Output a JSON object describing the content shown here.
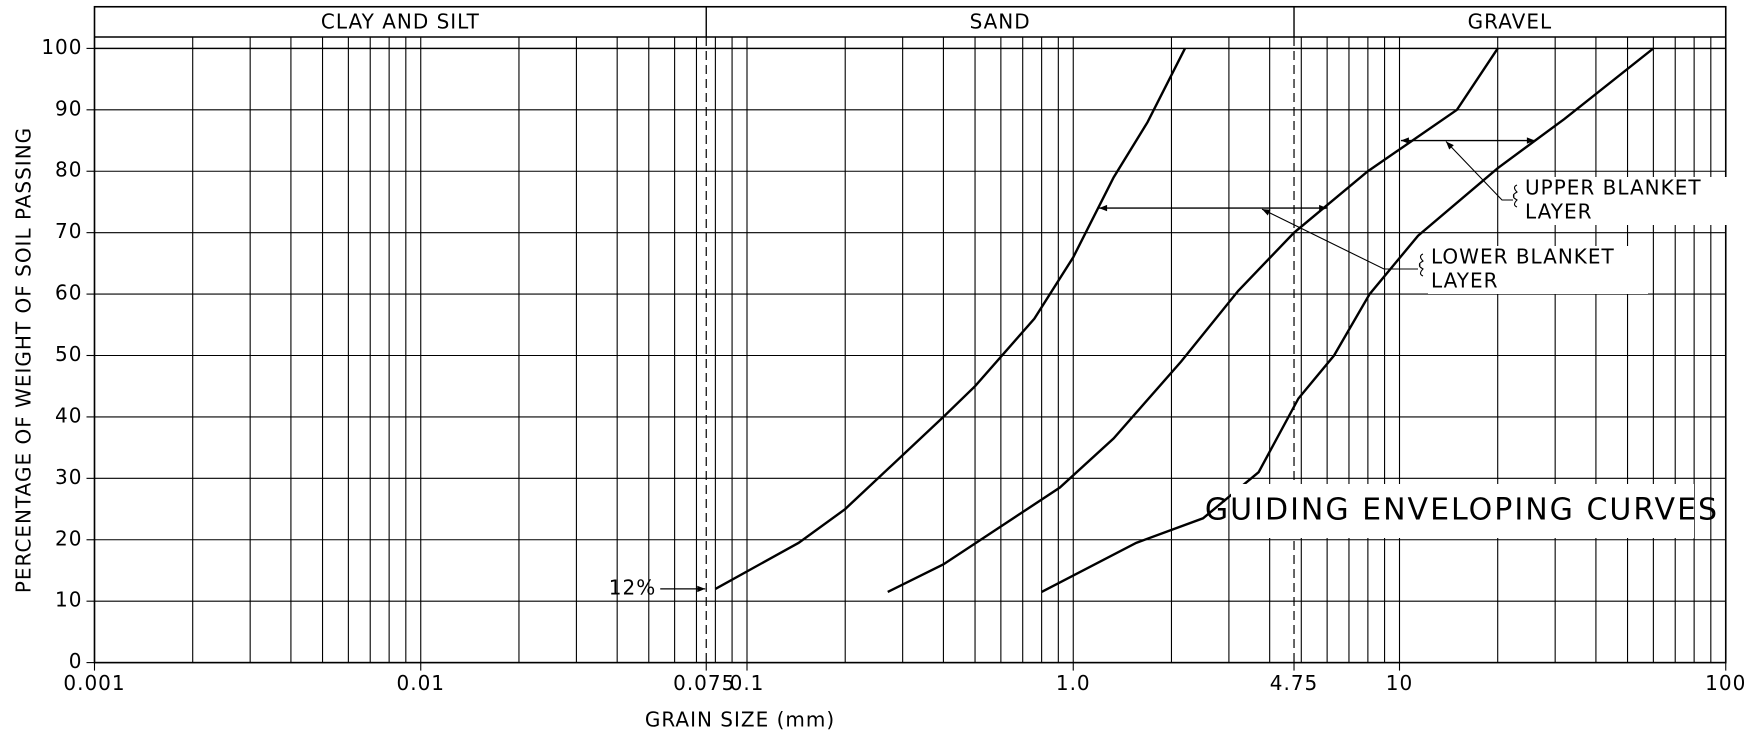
{
  "chart_data": {
    "type": "line",
    "xlabel": "GRAIN SIZE (mm)",
    "ylabel": "PERCENTAGE OF WEIGHT OF SOIL PASSING",
    "xscale": "log",
    "xlim": [
      0.001,
      100
    ],
    "ylim": [
      0,
      100
    ],
    "xticks": [
      0.001,
      0.01,
      0.075,
      0.1,
      {
        "value": 1,
        "label": "1.0"
      },
      4.75,
      10,
      100
    ],
    "yticks": [
      0,
      10,
      20,
      30,
      40,
      50,
      60,
      70,
      80,
      90,
      100
    ],
    "grid": true,
    "zones": [
      {
        "label": "CLAY AND SILT",
        "from": 0.001,
        "to": 0.075
      },
      {
        "label": "SAND",
        "from": 0.075,
        "to": 4.75
      },
      {
        "label": "GRAVEL",
        "from": 4.75,
        "to": 100
      }
    ],
    "series": [
      {
        "color": "#000000",
        "x": [
          0.08,
          0.144,
          0.2,
          0.4,
          0.5,
          0.76,
          1.0,
          1.33,
          1.69,
          2.2
        ],
        "values": [
          12,
          19.5,
          25,
          40,
          45,
          56,
          66,
          79,
          88,
          100
        ]
      },
      {
        "color": "#000000",
        "x": [
          0.27,
          0.4,
          0.91,
          1.33,
          2.14,
          3.2,
          4.75,
          8,
          15,
          20
        ],
        "values": [
          11.5,
          16,
          28.5,
          36.5,
          49,
          60.5,
          70,
          80,
          90,
          100
        ]
      },
      {
        "color": "#000000",
        "x": [
          0.8,
          1.56,
          2.5,
          3.7,
          4.9,
          6.3,
          8.1,
          11.4,
          20,
          32,
          60
        ],
        "values": [
          11.5,
          19.5,
          23.5,
          31,
          43,
          50,
          60,
          69.5,
          80.5,
          88.5,
          100
        ]
      }
    ],
    "annotations": [
      {
        "text": "12%",
        "x": 0.075,
        "y": 12
      },
      {
        "lines": [
          "UPPER BLANKET",
          "LAYER"
        ],
        "y": 85,
        "x_range": [
          10.1,
          26
        ]
      },
      {
        "lines": [
          "LOWER BLANKET",
          "LAYER"
        ],
        "y": 74,
        "x_range": [
          1.2,
          6
        ]
      },
      {
        "text": "GUIDING ENVELOPING CURVES"
      }
    ]
  }
}
